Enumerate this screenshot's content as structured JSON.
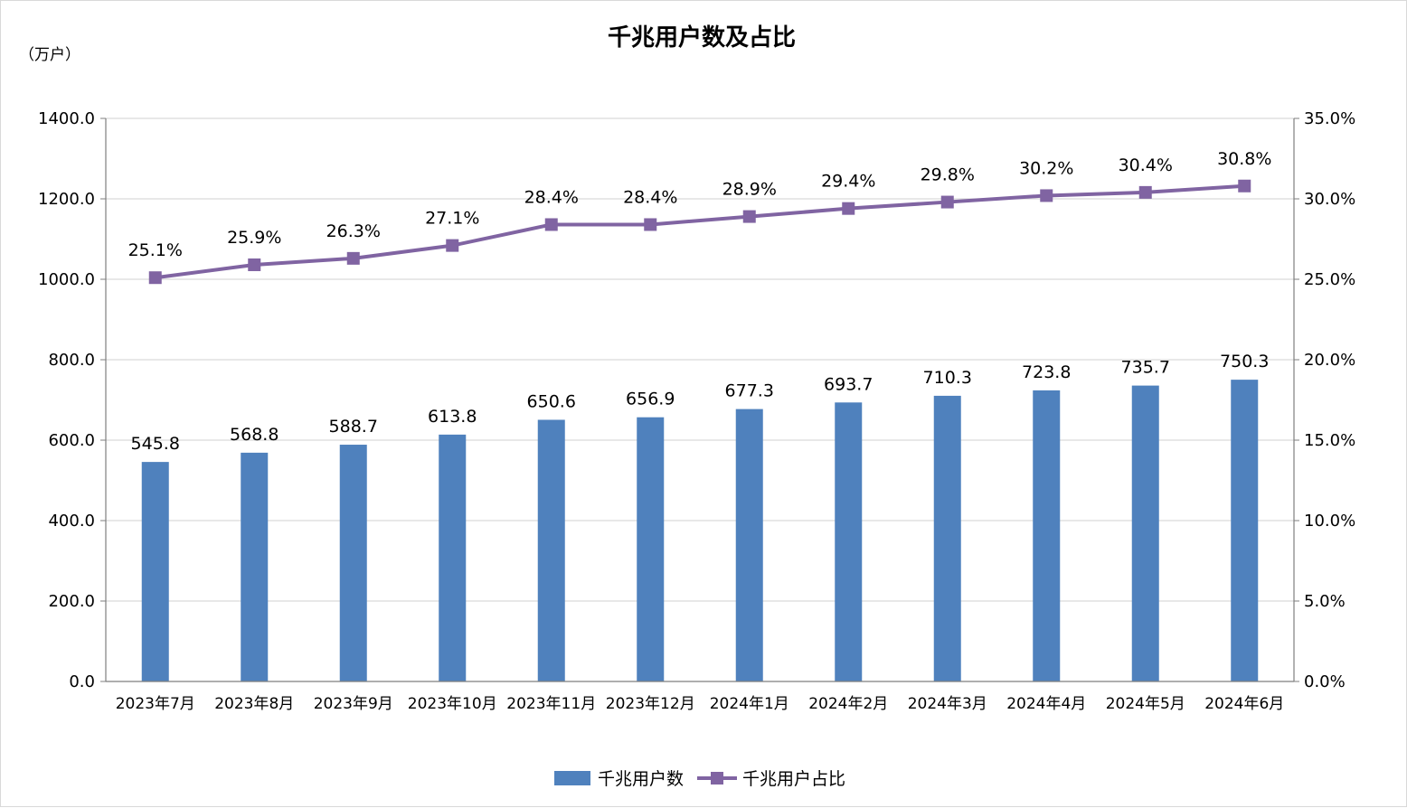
{
  "chart_data": {
    "type": "bar",
    "title": "千兆用户数及占比",
    "unit_label": "（万户）",
    "categories": [
      "2023年7月",
      "2023年8月",
      "2023年9月",
      "2023年10月",
      "2023年11月",
      "2023年12月",
      "2024年1月",
      "2024年2月",
      "2024年3月",
      "2024年4月",
      "2024年5月",
      "2024年6月"
    ],
    "series": [
      {
        "name": "千兆用户数",
        "type": "bar",
        "axis": "left",
        "color": "#4f81bd",
        "values": [
          545.8,
          568.8,
          588.7,
          613.8,
          650.6,
          656.9,
          677.3,
          693.7,
          710.3,
          723.8,
          735.7,
          750.3
        ],
        "labels": [
          "545.8",
          "568.8",
          "588.7",
          "613.8",
          "650.6",
          "656.9",
          "677.3",
          "693.7",
          "710.3",
          "723.8",
          "735.7",
          "750.3"
        ]
      },
      {
        "name": "千兆用户占比",
        "type": "line",
        "axis": "right",
        "color": "#8064a2",
        "values": [
          25.1,
          25.9,
          26.3,
          27.1,
          28.4,
          28.4,
          28.9,
          29.4,
          29.8,
          30.2,
          30.4,
          30.8
        ],
        "labels": [
          "25.1%",
          "25.9%",
          "26.3%",
          "27.1%",
          "28.4%",
          "28.4%",
          "28.9%",
          "29.4%",
          "29.8%",
          "30.2%",
          "30.4%",
          "30.8%"
        ]
      }
    ],
    "y_left": {
      "min": 0,
      "max": 1400,
      "ticks": [
        0,
        200,
        400,
        600,
        800,
        1000,
        1200,
        1400
      ],
      "tick_labels": [
        "0.0",
        "200.0",
        "400.0",
        "600.0",
        "800.0",
        "1000.0",
        "1200.0",
        "1400.0"
      ]
    },
    "y_right": {
      "min": 0,
      "max": 35,
      "ticks": [
        0,
        5,
        10,
        15,
        20,
        25,
        30,
        35
      ],
      "tick_labels": [
        "0.0%",
        "5.0%",
        "10.0%",
        "15.0%",
        "20.0%",
        "25.0%",
        "30.0%",
        "35.0%"
      ]
    },
    "grid": true,
    "legend_position": "bottom",
    "legend": [
      "千兆用户数",
      "千兆用户占比"
    ]
  }
}
